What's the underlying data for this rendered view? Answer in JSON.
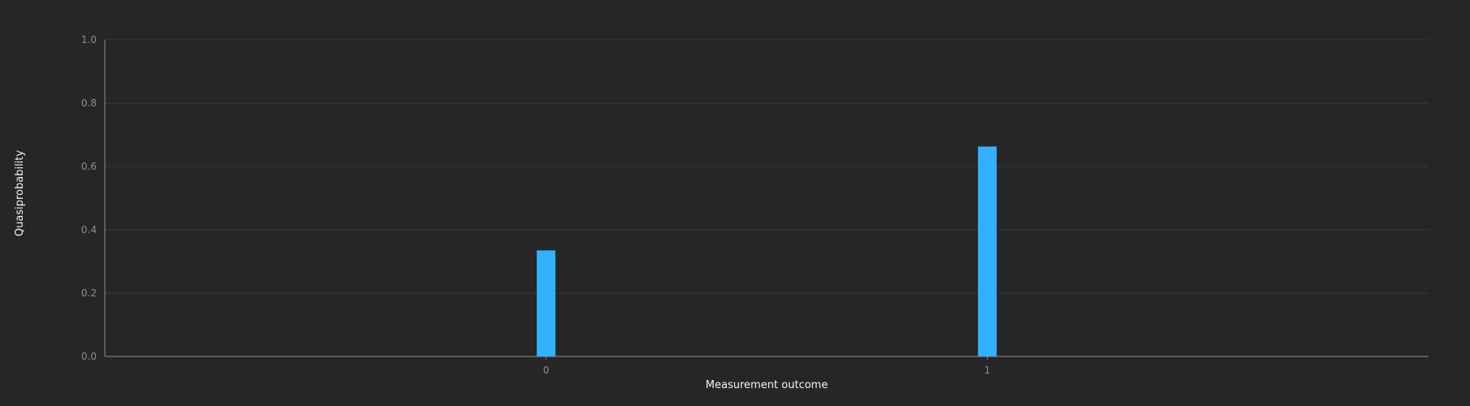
{
  "chart_data": {
    "type": "bar",
    "categories": [
      "0",
      "1"
    ],
    "values": [
      0.335,
      0.663
    ],
    "title": "",
    "xlabel": "Measurement outcome",
    "ylabel": "Quasiprobability",
    "ylim": [
      0,
      1.0
    ],
    "yticks": [
      "0.0",
      "0.2",
      "0.4",
      "0.6",
      "0.8",
      "1.0"
    ],
    "grid": true,
    "bar_color": "#33b1ff"
  }
}
